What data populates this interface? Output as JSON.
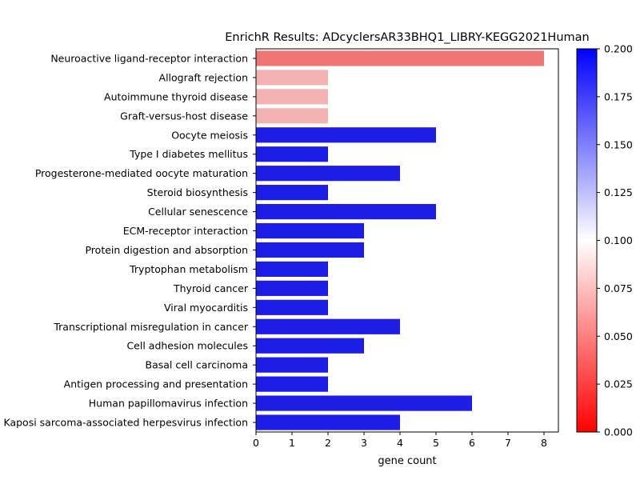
{
  "chart_data": {
    "type": "bar",
    "orientation": "horizontal",
    "title": "EnrichR Results: ADcyclersAR33BHQ1_LIBRY-KEGG2021Human",
    "xlabel": "gene count",
    "ylabel": "",
    "xlim": [
      0,
      8.4
    ],
    "xticks": [
      "0",
      "1",
      "2",
      "3",
      "4",
      "5",
      "6",
      "7",
      "8"
    ],
    "grid": false,
    "categories": [
      "Neuroactive ligand-receptor interaction",
      "Allograft rejection",
      "Autoimmune thyroid disease",
      "Graft-versus-host disease",
      "Oocyte meiosis",
      "Type I diabetes mellitus",
      "Progesterone-mediated oocyte maturation",
      "Steroid biosynthesis",
      "Cellular senescence",
      "ECM-receptor interaction",
      "Protein digestion and absorption",
      "Tryptophan metabolism",
      "Thyroid cancer",
      "Viral myocarditis",
      "Transcriptional misregulation in cancer",
      "Cell adhesion molecules",
      "Basal cell carcinoma",
      "Antigen processing and presentation",
      "Human papillomavirus infection",
      "Kaposi sarcoma-associated herpesvirus infection"
    ],
    "values": [
      8,
      2,
      2,
      2,
      5,
      2,
      4,
      2,
      5,
      3,
      3,
      2,
      2,
      2,
      4,
      3,
      2,
      2,
      6,
      4
    ],
    "bar_colors": [
      "#f07575",
      "#f4b3b3",
      "#f4b3b3",
      "#f4b3b3",
      "#1d1de8",
      "#1d1de8",
      "#1d1de8",
      "#1d1de8",
      "#1d1de8",
      "#1d1de8",
      "#1d1de8",
      "#1d1de8",
      "#1d1de8",
      "#1d1de8",
      "#1d1de8",
      "#1d1de8",
      "#1d1de8",
      "#1d1de8",
      "#1d1de8",
      "#1d1de8"
    ],
    "colorbar": {
      "range": [
        0,
        0.2
      ],
      "ticks": [
        "0.000",
        "0.025",
        "0.050",
        "0.075",
        "0.100",
        "0.125",
        "0.150",
        "0.175",
        "0.200"
      ],
      "colors": [
        "#ff0000",
        "#ffffff",
        "#0000ff"
      ]
    }
  }
}
